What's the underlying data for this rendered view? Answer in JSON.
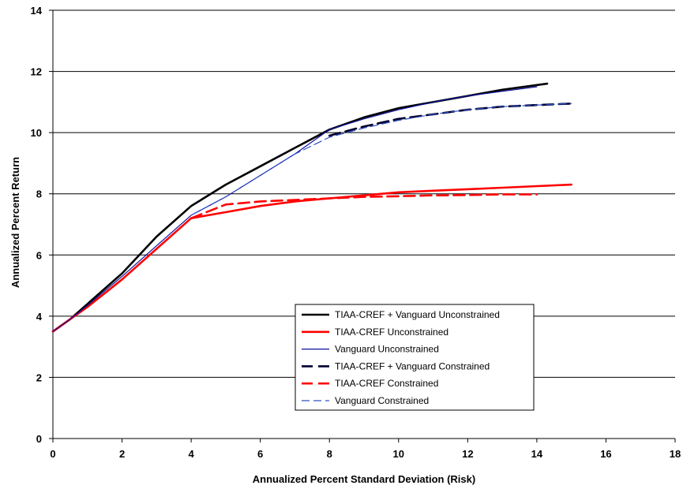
{
  "chart_data": {
    "type": "line",
    "title": "",
    "xlabel": "Annualized Percent Standard Deviation (Risk)",
    "ylabel": "Annualized Percent Return",
    "xlim": [
      0,
      18
    ],
    "ylim": [
      0,
      14
    ],
    "x_ticks": [
      0,
      2,
      4,
      6,
      8,
      10,
      12,
      14,
      16,
      18
    ],
    "y_ticks": [
      0,
      2,
      4,
      6,
      8,
      10,
      12,
      14
    ],
    "grid": "horizontal",
    "legend_position": "lower-right",
    "series": [
      {
        "name": "TIAA-CREF + Vanguard Unconstrained",
        "color": "#000000",
        "style": "solid",
        "width": 2.6,
        "points": [
          [
            0,
            3.5
          ],
          [
            0.5,
            3.9
          ],
          [
            1,
            4.4
          ],
          [
            2,
            5.4
          ],
          [
            3,
            6.6
          ],
          [
            4,
            7.6
          ],
          [
            5,
            8.3
          ],
          [
            6,
            8.9
          ],
          [
            7,
            9.5
          ],
          [
            8,
            10.1
          ],
          [
            9,
            10.5
          ],
          [
            10,
            10.8
          ],
          [
            11,
            11.0
          ],
          [
            12,
            11.2
          ],
          [
            13,
            11.4
          ],
          [
            14.3,
            11.6
          ]
        ]
      },
      {
        "name": "TIAA-CREF Unconstrained",
        "color": "#ff0000",
        "style": "solid",
        "width": 2.6,
        "points": [
          [
            0,
            3.5
          ],
          [
            0.5,
            3.9
          ],
          [
            1,
            4.3
          ],
          [
            2,
            5.2
          ],
          [
            3,
            6.2
          ],
          [
            4,
            7.2
          ],
          [
            5,
            7.4
          ],
          [
            6,
            7.6
          ],
          [
            7,
            7.75
          ],
          [
            8,
            7.85
          ],
          [
            9,
            7.95
          ],
          [
            10,
            8.05
          ],
          [
            11,
            8.1
          ],
          [
            12,
            8.15
          ],
          [
            13,
            8.2
          ],
          [
            14,
            8.25
          ],
          [
            15,
            8.3
          ]
        ]
      },
      {
        "name": "Vanguard Unconstrained",
        "color": "#1010a0",
        "style": "solid",
        "width": 1.2,
        "points": [
          [
            0,
            3.5
          ],
          [
            0.5,
            3.9
          ],
          [
            1,
            4.35
          ],
          [
            2,
            5.3
          ],
          [
            3,
            6.3
          ],
          [
            4,
            7.3
          ],
          [
            5,
            7.9
          ],
          [
            6,
            8.6
          ],
          [
            7,
            9.3
          ],
          [
            8,
            10.1
          ],
          [
            9,
            10.45
          ],
          [
            10,
            10.75
          ],
          [
            11,
            11.0
          ],
          [
            12,
            11.2
          ],
          [
            13,
            11.35
          ],
          [
            14,
            11.5
          ]
        ]
      },
      {
        "name": "TIAA-CREF + Vanguard Constrained",
        "color": "#000030",
        "style": "dashed",
        "width": 2.6,
        "points": [
          [
            8,
            9.9
          ],
          [
            9,
            10.2
          ],
          [
            10,
            10.45
          ],
          [
            11,
            10.6
          ],
          [
            12,
            10.75
          ],
          [
            13,
            10.85
          ],
          [
            14,
            10.9
          ],
          [
            15,
            10.95
          ]
        ]
      },
      {
        "name": "TIAA-CREF Constrained",
        "color": "#ff0000",
        "style": "dashed",
        "width": 2.6,
        "points": [
          [
            4,
            7.2
          ],
          [
            5,
            7.65
          ],
          [
            6,
            7.75
          ],
          [
            7,
            7.8
          ],
          [
            8,
            7.85
          ],
          [
            9,
            7.9
          ],
          [
            10,
            7.92
          ],
          [
            11,
            7.95
          ],
          [
            12,
            7.96
          ],
          [
            13,
            7.98
          ],
          [
            14,
            7.98
          ]
        ]
      },
      {
        "name": "Vanguard Constrained",
        "color": "#3050c0",
        "style": "dashed",
        "width": 1.2,
        "points": [
          [
            4,
            7.3
          ],
          [
            5,
            7.9
          ],
          [
            6,
            8.6
          ],
          [
            7,
            9.3
          ],
          [
            8,
            9.85
          ],
          [
            9,
            10.15
          ],
          [
            10,
            10.4
          ],
          [
            11,
            10.6
          ],
          [
            12,
            10.75
          ],
          [
            13,
            10.85
          ],
          [
            14,
            10.9
          ],
          [
            15,
            10.95
          ]
        ]
      }
    ]
  }
}
